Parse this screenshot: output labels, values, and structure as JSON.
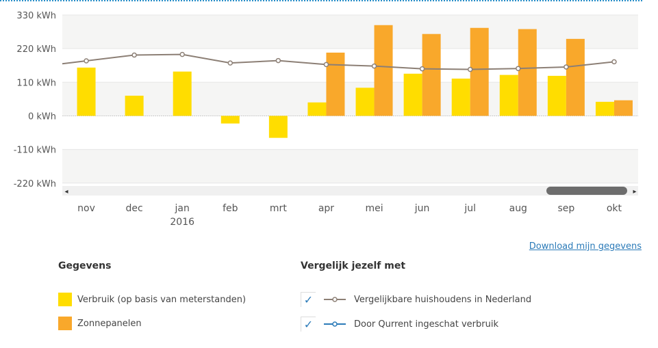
{
  "chart_data": {
    "type": "bar",
    "y_unit": "kWh",
    "y_ticks": [
      "330 kWh",
      "220 kWh",
      "110 kWh",
      "0 kWh",
      "-110 kWh",
      "-220 kWh"
    ],
    "y_tick_values": [
      330,
      220,
      110,
      0,
      -110,
      -220
    ],
    "ylim": [
      -225,
      330
    ],
    "categories": [
      "nov",
      "dec",
      "jan",
      "feb",
      "mrt",
      "apr",
      "mei",
      "jun",
      "jul",
      "aug",
      "sep",
      "okt"
    ],
    "year_label": "2016",
    "year_label_index": 2,
    "series": [
      {
        "name": "Verbruik (op basis van meterstanden)",
        "kind": "bar",
        "color": "#ffdd00",
        "values": [
          158,
          66,
          145,
          -25,
          -72,
          44,
          92,
          138,
          122,
          134,
          131,
          46
        ]
      },
      {
        "name": "Zonnepanelen",
        "kind": "bar",
        "color": "#f9a82b",
        "values": [
          null,
          null,
          null,
          null,
          null,
          207,
          297,
          268,
          288,
          284,
          252,
          51
        ]
      },
      {
        "name": "Vergelijkbare huishoudens in Nederland",
        "kind": "line",
        "color": "#8c7f75",
        "values": [
          180,
          199,
          201,
          173,
          181,
          168,
          163,
          154,
          152,
          155,
          160,
          177
        ]
      }
    ],
    "grid": true
  },
  "download_link": "Download mijn gegevens",
  "gegevens": {
    "title": "Gegevens",
    "items": [
      {
        "label": "Verbruik (op basis van meterstanden)",
        "color": "#ffdd00"
      },
      {
        "label": "Zonnepanelen",
        "color": "#f9a82b"
      }
    ]
  },
  "vergelijk": {
    "title": "Vergelijk jezelf met",
    "items": [
      {
        "label": "Vergelijkbare huishoudens in Nederland",
        "color": "#8c7f75",
        "checked": true
      },
      {
        "label": "Door Qurrent ingeschat verbruik",
        "color": "#2a7ab8",
        "checked": true
      }
    ]
  },
  "scroll": {
    "left_arrow": "◂",
    "right_arrow": "▸"
  },
  "checkmark": "✓"
}
